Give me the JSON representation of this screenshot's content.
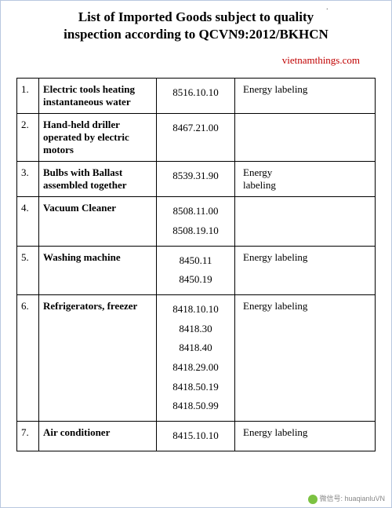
{
  "title_line1": "List of Imported Goods subject to quality",
  "title_line2": "inspection according to QCVN9:2012/BKHCN",
  "source": "vietnamthings.com",
  "columns": {
    "num": "",
    "name": "",
    "code": "",
    "label": ""
  },
  "rows": [
    {
      "n": "1.",
      "name": "Electric tools heating instantaneous water",
      "codes": [
        "8516.10.10"
      ],
      "label": "Energy labeling"
    },
    {
      "n": "2.",
      "name": "Hand-held driller operated by electric motors",
      "codes": [
        "8467.21.00"
      ],
      "label": ""
    },
    {
      "n": "3.",
      "name": "Bulbs with Ballast assembled together",
      "codes": [
        "8539.31.90"
      ],
      "label": "Energy labeling"
    },
    {
      "n": "4.",
      "name": "Vacuum Cleaner",
      "codes": [
        "8508.11.00",
        "8508.19.10"
      ],
      "label": ""
    },
    {
      "n": "5.",
      "name": "Washing machine",
      "codes": [
        "8450.11",
        "8450.19"
      ],
      "label": "Energy labeling"
    },
    {
      "n": "6.",
      "name": "Refrigerators, freezer",
      "codes": [
        "8418.10.10",
        "8418.30",
        "8418.40",
        "8418.29.00",
        "8418.50.19",
        "8418.50.99"
      ],
      "label": "Energy labeling"
    },
    {
      "n": "7.",
      "name": "Air conditioner",
      "codes": [
        "8415.10.10"
      ],
      "label": "Energy labeling"
    }
  ],
  "footer_text": "微信号: huaqianluVN",
  "style": {
    "title_color": "#000000",
    "source_color": "#c00000",
    "border_color": "#000000",
    "font_family": "Times New Roman",
    "font_size_title": 17,
    "font_size_table": 13,
    "label_narrow_wrap_rows": [
      2
    ]
  }
}
